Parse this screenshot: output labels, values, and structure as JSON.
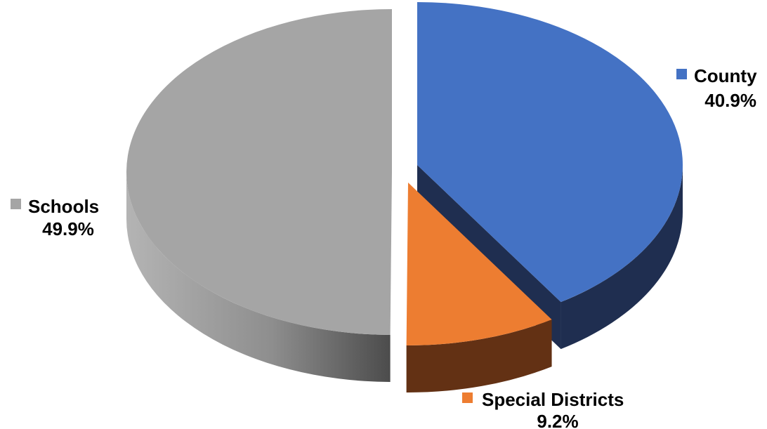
{
  "chart_data": {
    "type": "pie",
    "style": "3d-exploded",
    "title": "",
    "slices": [
      {
        "name": "County",
        "value": 40.9,
        "label": "40.9%",
        "color": "#4472C4",
        "side_color": "#1F2E50"
      },
      {
        "name": "Special Districts",
        "value": 9.2,
        "label": "9.2%",
        "color": "#ED7D31",
        "side_color": "#633114"
      },
      {
        "name": "Schools",
        "value": 49.9,
        "label": "49.9%",
        "color": "#A5A5A5",
        "side_color": "#6B6B6B"
      }
    ],
    "legend": "inline-labels"
  }
}
